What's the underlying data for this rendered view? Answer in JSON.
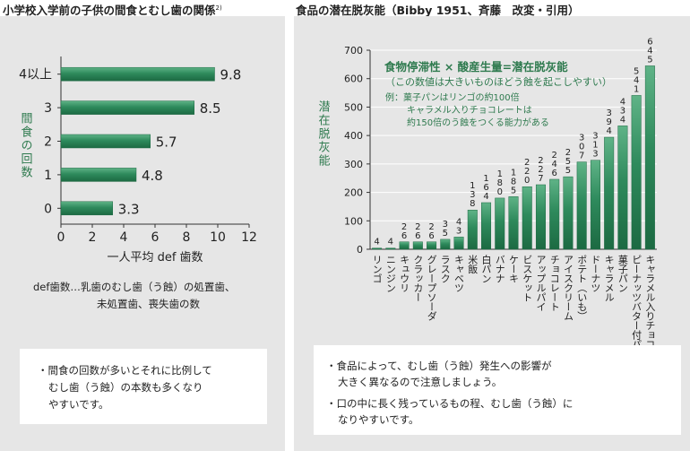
{
  "left": {
    "title": "小学校入学前の子供の間食とむし歯の関係",
    "title_sup": "2)",
    "def_note_1": "def歯数…乳歯のむし歯（う蝕）の処置歯、",
    "def_note_2": "未処置歯、喪失歯の数",
    "box_line_1": "・間食の回数が多いとそれに比例して",
    "box_line_2": "むし歯（う蝕）の本数も多くなり",
    "box_line_3": "やすいです。"
  },
  "right": {
    "title": "食品の潜在脱灰能（Bibby 1951、斉藤　改変・引用）",
    "box_line_1": "・食品によって、むし歯（う蝕）発生への影響が",
    "box_line_2": "大きく異なるので注意しましょう。",
    "box_line_3": "・口の中に長く残っているもの程、むし歯（う蝕）に",
    "box_line_4": "なりやすいです。"
  },
  "colors": {
    "bar": "#2e8a5c",
    "panel": "#e6e6e6",
    "accent_text": "#2e7a4e"
  },
  "chart_data": [
    {
      "type": "bar",
      "orientation": "horizontal",
      "categories": [
        "0",
        "1",
        "2",
        "3",
        "4以上"
      ],
      "values": [
        3.3,
        4.8,
        5.7,
        8.5,
        9.8
      ],
      "value_labels": [
        "3.3",
        "4.8",
        "5.7",
        "8.5",
        "9.8"
      ],
      "xlabel": "一人平均 def 歯数",
      "ylabel": "間食の回数",
      "xlim": [
        0,
        12
      ],
      "xticks": [
        "0",
        "2",
        "4",
        "6",
        "8",
        "10",
        "12"
      ],
      "grid": false
    },
    {
      "type": "bar",
      "categories": [
        "リンゴ",
        "ニンジン",
        "キュウリ",
        "クラッカー",
        "グレープソーダ",
        "ラスク",
        "キャベツ",
        "米飯",
        "白パン",
        "バナナ",
        "ケーキ",
        "ビスケット",
        "アップルパイ",
        "チョコレート",
        "アイスクリーム",
        "ポテト（いも）",
        "ドーナツ",
        "キャラメル",
        "菓子パン",
        "ピーナッツバター付パン",
        "キャラメル入りチョコレート"
      ],
      "values": [
        4,
        4,
        26,
        26,
        26,
        35,
        43,
        138,
        164,
        180,
        185,
        220,
        227,
        246,
        255,
        307,
        313,
        394,
        434,
        541,
        645
      ],
      "value_labels": [
        "4",
        "4",
        "26",
        "26",
        "26",
        "35",
        "43",
        "138",
        "164",
        "180",
        "185",
        "220",
        "227",
        "246",
        "255",
        "307",
        "313",
        "394",
        "434",
        "541",
        "645"
      ],
      "ylabel": "潜在脱灰能",
      "ylim": [
        0,
        700
      ],
      "yticks": [
        "0",
        "100",
        "200",
        "300",
        "400",
        "500",
        "600",
        "700"
      ],
      "grid": true,
      "annotation": {
        "headline": "食物停滞性 × 酸産生量=潜在脱灰能",
        "subline": "（この数値は大きいものほどう蝕を起こしやすい）",
        "example_1": "例：菓子パンはリンゴの約100倍",
        "example_2": "キャラメル入りチョコレートは",
        "example_3": "約150倍のう蝕をつくる能力がある"
      }
    }
  ]
}
